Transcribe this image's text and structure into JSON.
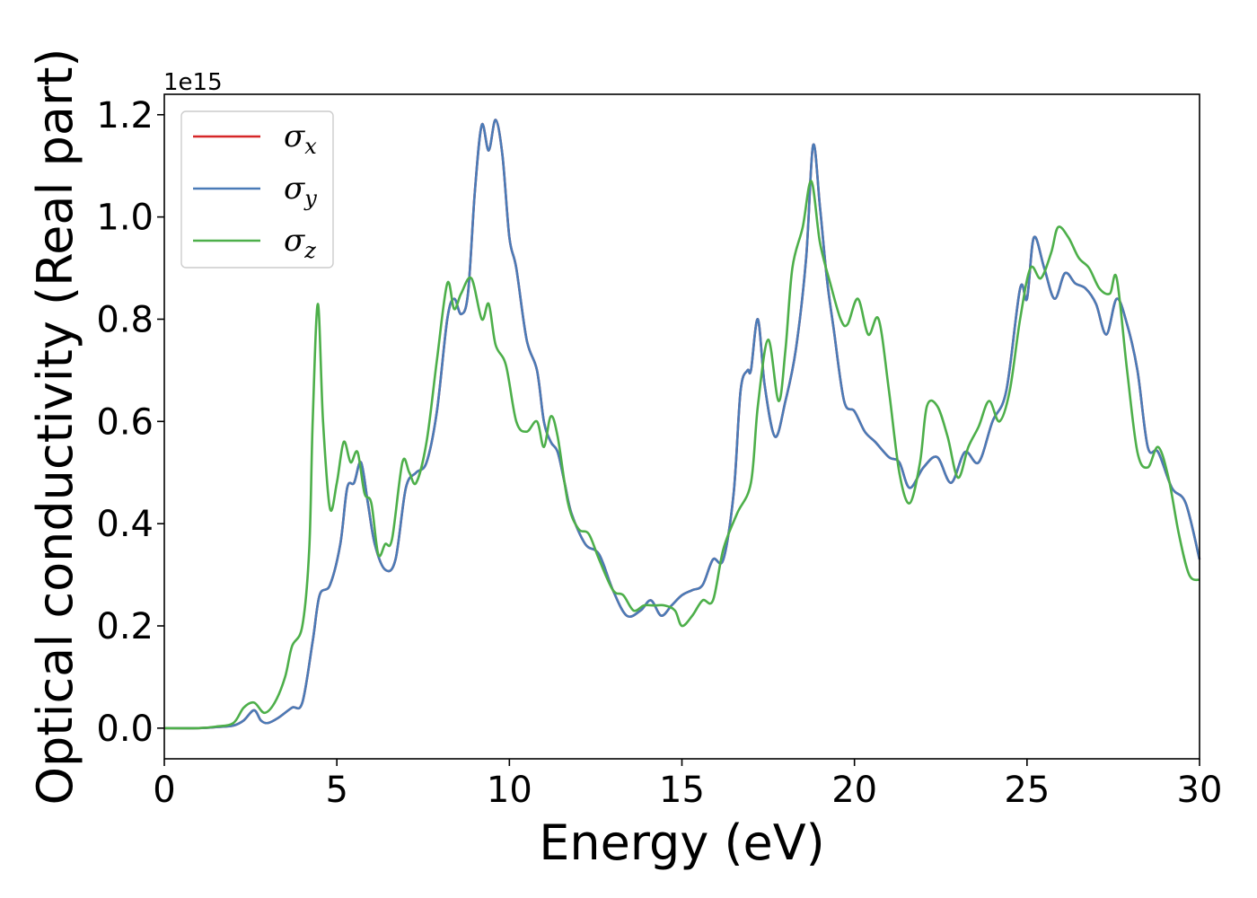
{
  "chart_data": {
    "type": "line",
    "xlabel": "Energy (eV)",
    "ylabel": "Optical conductivity (Real part)",
    "y_offset_label": "1e15",
    "xlim": [
      0,
      30
    ],
    "ylim": [
      -0.06,
      1.24
    ],
    "xticks": [
      0,
      5,
      10,
      15,
      20,
      25,
      30
    ],
    "xtick_labels": [
      "0",
      "5",
      "10",
      "15",
      "20",
      "25",
      "30"
    ],
    "yticks": [
      0.0,
      0.2,
      0.4,
      0.6,
      0.8,
      1.0,
      1.2
    ],
    "ytick_labels": [
      "0.0",
      "0.2",
      "0.4",
      "0.6",
      "0.8",
      "1.0",
      "1.2"
    ],
    "grid": false,
    "legend_position": "top-left",
    "series": [
      {
        "name": "σx",
        "legend_symbol": "σ",
        "legend_subscript": "x",
        "color": "#d62728",
        "points": [
          [
            0,
            0
          ],
          [
            1,
            0
          ],
          [
            1.5,
            0.002
          ],
          [
            2,
            0.005
          ],
          [
            2.3,
            0.015
          ],
          [
            2.6,
            0.035
          ],
          [
            2.8,
            0.015
          ],
          [
            3.0,
            0.01
          ],
          [
            3.3,
            0.02
          ],
          [
            3.7,
            0.04
          ],
          [
            4.0,
            0.05
          ],
          [
            4.3,
            0.17
          ],
          [
            4.5,
            0.26
          ],
          [
            4.8,
            0.28
          ],
          [
            5.1,
            0.36
          ],
          [
            5.3,
            0.47
          ],
          [
            5.5,
            0.48
          ],
          [
            5.7,
            0.52
          ],
          [
            5.9,
            0.44
          ],
          [
            6.1,
            0.36
          ],
          [
            6.4,
            0.31
          ],
          [
            6.7,
            0.33
          ],
          [
            7.0,
            0.47
          ],
          [
            7.3,
            0.5
          ],
          [
            7.6,
            0.52
          ],
          [
            7.9,
            0.62
          ],
          [
            8.2,
            0.8
          ],
          [
            8.4,
            0.84
          ],
          [
            8.6,
            0.81
          ],
          [
            8.8,
            0.85
          ],
          [
            9.0,
            1.05
          ],
          [
            9.2,
            1.18
          ],
          [
            9.4,
            1.13
          ],
          [
            9.6,
            1.19
          ],
          [
            9.8,
            1.12
          ],
          [
            10.0,
            0.96
          ],
          [
            10.2,
            0.9
          ],
          [
            10.5,
            0.76
          ],
          [
            10.8,
            0.7
          ],
          [
            11.0,
            0.6
          ],
          [
            11.2,
            0.56
          ],
          [
            11.4,
            0.54
          ],
          [
            11.6,
            0.48
          ],
          [
            11.8,
            0.42
          ],
          [
            12.2,
            0.36
          ],
          [
            12.6,
            0.34
          ],
          [
            13.0,
            0.27
          ],
          [
            13.4,
            0.22
          ],
          [
            13.8,
            0.23
          ],
          [
            14.1,
            0.25
          ],
          [
            14.4,
            0.22
          ],
          [
            14.7,
            0.24
          ],
          [
            15.0,
            0.26
          ],
          [
            15.3,
            0.27
          ],
          [
            15.6,
            0.28
          ],
          [
            15.9,
            0.33
          ],
          [
            16.2,
            0.33
          ],
          [
            16.5,
            0.46
          ],
          [
            16.7,
            0.66
          ],
          [
            16.9,
            0.7
          ],
          [
            17.0,
            0.7
          ],
          [
            17.2,
            0.8
          ],
          [
            17.4,
            0.67
          ],
          [
            17.7,
            0.57
          ],
          [
            18.0,
            0.64
          ],
          [
            18.3,
            0.74
          ],
          [
            18.6,
            0.92
          ],
          [
            18.8,
            1.14
          ],
          [
            19.0,
            1.02
          ],
          [
            19.2,
            0.88
          ],
          [
            19.4,
            0.78
          ],
          [
            19.7,
            0.64
          ],
          [
            20.0,
            0.62
          ],
          [
            20.3,
            0.58
          ],
          [
            20.6,
            0.56
          ],
          [
            21.0,
            0.53
          ],
          [
            21.3,
            0.52
          ],
          [
            21.6,
            0.47
          ],
          [
            22.0,
            0.51
          ],
          [
            22.4,
            0.53
          ],
          [
            22.8,
            0.48
          ],
          [
            23.2,
            0.54
          ],
          [
            23.6,
            0.52
          ],
          [
            24.0,
            0.6
          ],
          [
            24.4,
            0.66
          ],
          [
            24.8,
            0.86
          ],
          [
            25.0,
            0.84
          ],
          [
            25.2,
            0.96
          ],
          [
            25.5,
            0.9
          ],
          [
            25.8,
            0.84
          ],
          [
            26.1,
            0.89
          ],
          [
            26.4,
            0.87
          ],
          [
            26.7,
            0.86
          ],
          [
            27.0,
            0.83
          ],
          [
            27.3,
            0.77
          ],
          [
            27.6,
            0.84
          ],
          [
            27.9,
            0.79
          ],
          [
            28.2,
            0.7
          ],
          [
            28.5,
            0.55
          ],
          [
            28.8,
            0.54
          ],
          [
            29.2,
            0.47
          ],
          [
            29.6,
            0.44
          ],
          [
            30.0,
            0.33
          ]
        ]
      },
      {
        "name": "σy",
        "legend_symbol": "σ",
        "legend_subscript": "y",
        "color": "#4a7bb7",
        "points": [
          [
            0,
            0
          ],
          [
            1,
            0
          ],
          [
            1.5,
            0.002
          ],
          [
            2,
            0.005
          ],
          [
            2.3,
            0.015
          ],
          [
            2.6,
            0.035
          ],
          [
            2.8,
            0.015
          ],
          [
            3.0,
            0.01
          ],
          [
            3.3,
            0.02
          ],
          [
            3.7,
            0.04
          ],
          [
            4.0,
            0.05
          ],
          [
            4.3,
            0.17
          ],
          [
            4.5,
            0.26
          ],
          [
            4.8,
            0.28
          ],
          [
            5.1,
            0.36
          ],
          [
            5.3,
            0.47
          ],
          [
            5.5,
            0.48
          ],
          [
            5.7,
            0.52
          ],
          [
            5.9,
            0.44
          ],
          [
            6.1,
            0.36
          ],
          [
            6.4,
            0.31
          ],
          [
            6.7,
            0.33
          ],
          [
            7.0,
            0.47
          ],
          [
            7.3,
            0.5
          ],
          [
            7.6,
            0.52
          ],
          [
            7.9,
            0.62
          ],
          [
            8.2,
            0.8
          ],
          [
            8.4,
            0.84
          ],
          [
            8.6,
            0.81
          ],
          [
            8.8,
            0.85
          ],
          [
            9.0,
            1.05
          ],
          [
            9.2,
            1.18
          ],
          [
            9.4,
            1.13
          ],
          [
            9.6,
            1.19
          ],
          [
            9.8,
            1.12
          ],
          [
            10.0,
            0.96
          ],
          [
            10.2,
            0.9
          ],
          [
            10.5,
            0.76
          ],
          [
            10.8,
            0.7
          ],
          [
            11.0,
            0.6
          ],
          [
            11.2,
            0.56
          ],
          [
            11.4,
            0.54
          ],
          [
            11.6,
            0.48
          ],
          [
            11.8,
            0.42
          ],
          [
            12.2,
            0.36
          ],
          [
            12.6,
            0.34
          ],
          [
            13.0,
            0.27
          ],
          [
            13.4,
            0.22
          ],
          [
            13.8,
            0.23
          ],
          [
            14.1,
            0.25
          ],
          [
            14.4,
            0.22
          ],
          [
            14.7,
            0.24
          ],
          [
            15.0,
            0.26
          ],
          [
            15.3,
            0.27
          ],
          [
            15.6,
            0.28
          ],
          [
            15.9,
            0.33
          ],
          [
            16.2,
            0.33
          ],
          [
            16.5,
            0.46
          ],
          [
            16.7,
            0.66
          ],
          [
            16.9,
            0.7
          ],
          [
            17.0,
            0.7
          ],
          [
            17.2,
            0.8
          ],
          [
            17.4,
            0.67
          ],
          [
            17.7,
            0.57
          ],
          [
            18.0,
            0.64
          ],
          [
            18.3,
            0.74
          ],
          [
            18.6,
            0.92
          ],
          [
            18.8,
            1.14
          ],
          [
            19.0,
            1.02
          ],
          [
            19.2,
            0.88
          ],
          [
            19.4,
            0.78
          ],
          [
            19.7,
            0.64
          ],
          [
            20.0,
            0.62
          ],
          [
            20.3,
            0.58
          ],
          [
            20.6,
            0.56
          ],
          [
            21.0,
            0.53
          ],
          [
            21.3,
            0.52
          ],
          [
            21.6,
            0.47
          ],
          [
            22.0,
            0.51
          ],
          [
            22.4,
            0.53
          ],
          [
            22.8,
            0.48
          ],
          [
            23.2,
            0.54
          ],
          [
            23.6,
            0.52
          ],
          [
            24.0,
            0.6
          ],
          [
            24.4,
            0.66
          ],
          [
            24.8,
            0.86
          ],
          [
            25.0,
            0.84
          ],
          [
            25.2,
            0.96
          ],
          [
            25.5,
            0.9
          ],
          [
            25.8,
            0.84
          ],
          [
            26.1,
            0.89
          ],
          [
            26.4,
            0.87
          ],
          [
            26.7,
            0.86
          ],
          [
            27.0,
            0.83
          ],
          [
            27.3,
            0.77
          ],
          [
            27.6,
            0.84
          ],
          [
            27.9,
            0.79
          ],
          [
            28.2,
            0.7
          ],
          [
            28.5,
            0.55
          ],
          [
            28.8,
            0.54
          ],
          [
            29.2,
            0.47
          ],
          [
            29.6,
            0.44
          ],
          [
            30.0,
            0.33
          ]
        ]
      },
      {
        "name": "σz",
        "legend_symbol": "σ",
        "legend_subscript": "z",
        "color": "#4daf4a",
        "points": [
          [
            0,
            0
          ],
          [
            1,
            0
          ],
          [
            1.5,
            0.003
          ],
          [
            2,
            0.01
          ],
          [
            2.3,
            0.04
          ],
          [
            2.6,
            0.05
          ],
          [
            2.9,
            0.03
          ],
          [
            3.2,
            0.05
          ],
          [
            3.5,
            0.1
          ],
          [
            3.7,
            0.16
          ],
          [
            4.0,
            0.2
          ],
          [
            4.2,
            0.35
          ],
          [
            4.3,
            0.6
          ],
          [
            4.45,
            0.83
          ],
          [
            4.6,
            0.6
          ],
          [
            4.8,
            0.43
          ],
          [
            5.0,
            0.48
          ],
          [
            5.2,
            0.56
          ],
          [
            5.4,
            0.52
          ],
          [
            5.6,
            0.54
          ],
          [
            5.8,
            0.46
          ],
          [
            6.0,
            0.44
          ],
          [
            6.2,
            0.34
          ],
          [
            6.4,
            0.36
          ],
          [
            6.6,
            0.37
          ],
          [
            6.9,
            0.52
          ],
          [
            7.1,
            0.5
          ],
          [
            7.3,
            0.48
          ],
          [
            7.6,
            0.56
          ],
          [
            7.9,
            0.72
          ],
          [
            8.2,
            0.87
          ],
          [
            8.4,
            0.82
          ],
          [
            8.6,
            0.85
          ],
          [
            8.9,
            0.88
          ],
          [
            9.2,
            0.8
          ],
          [
            9.4,
            0.83
          ],
          [
            9.6,
            0.75
          ],
          [
            9.9,
            0.71
          ],
          [
            10.2,
            0.6
          ],
          [
            10.5,
            0.58
          ],
          [
            10.8,
            0.6
          ],
          [
            11.0,
            0.55
          ],
          [
            11.2,
            0.61
          ],
          [
            11.4,
            0.57
          ],
          [
            11.7,
            0.44
          ],
          [
            12.0,
            0.39
          ],
          [
            12.3,
            0.38
          ],
          [
            12.6,
            0.33
          ],
          [
            13.0,
            0.27
          ],
          [
            13.3,
            0.26
          ],
          [
            13.6,
            0.23
          ],
          [
            13.9,
            0.24
          ],
          [
            14.2,
            0.24
          ],
          [
            14.5,
            0.24
          ],
          [
            14.8,
            0.23
          ],
          [
            15.0,
            0.2
          ],
          [
            15.3,
            0.22
          ],
          [
            15.6,
            0.25
          ],
          [
            15.9,
            0.25
          ],
          [
            16.2,
            0.35
          ],
          [
            16.6,
            0.42
          ],
          [
            17.0,
            0.48
          ],
          [
            17.2,
            0.63
          ],
          [
            17.5,
            0.76
          ],
          [
            17.8,
            0.64
          ],
          [
            18.0,
            0.74
          ],
          [
            18.2,
            0.9
          ],
          [
            18.5,
            0.98
          ],
          [
            18.75,
            1.07
          ],
          [
            19.0,
            0.95
          ],
          [
            19.3,
            0.87
          ],
          [
            19.6,
            0.8
          ],
          [
            19.8,
            0.79
          ],
          [
            20.1,
            0.84
          ],
          [
            20.4,
            0.77
          ],
          [
            20.7,
            0.8
          ],
          [
            21.0,
            0.66
          ],
          [
            21.3,
            0.5
          ],
          [
            21.6,
            0.44
          ],
          [
            21.9,
            0.52
          ],
          [
            22.1,
            0.63
          ],
          [
            22.4,
            0.63
          ],
          [
            22.7,
            0.57
          ],
          [
            23.0,
            0.49
          ],
          [
            23.3,
            0.55
          ],
          [
            23.6,
            0.59
          ],
          [
            23.9,
            0.64
          ],
          [
            24.2,
            0.6
          ],
          [
            24.5,
            0.66
          ],
          [
            24.8,
            0.8
          ],
          [
            25.1,
            0.9
          ],
          [
            25.4,
            0.88
          ],
          [
            25.7,
            0.93
          ],
          [
            25.9,
            0.98
          ],
          [
            26.2,
            0.96
          ],
          [
            26.5,
            0.92
          ],
          [
            26.8,
            0.9
          ],
          [
            27.1,
            0.86
          ],
          [
            27.4,
            0.85
          ],
          [
            27.6,
            0.88
          ],
          [
            27.9,
            0.7
          ],
          [
            28.2,
            0.54
          ],
          [
            28.5,
            0.51
          ],
          [
            28.8,
            0.55
          ],
          [
            29.1,
            0.49
          ],
          [
            29.4,
            0.38
          ],
          [
            29.7,
            0.3
          ],
          [
            30.0,
            0.29
          ]
        ]
      }
    ]
  }
}
